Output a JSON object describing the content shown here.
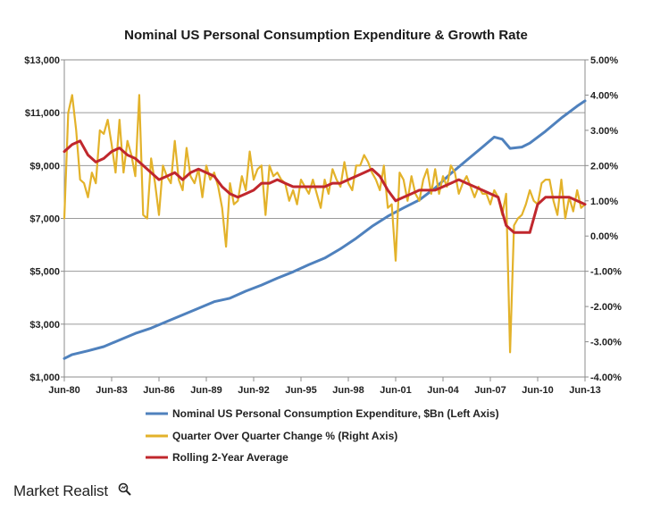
{
  "chart_data": {
    "type": "line",
    "title": "Nominal US Personal Consumption Expenditure & Growth Rate",
    "y_left": {
      "ylim": [
        1000,
        13000
      ],
      "ticks": [
        "$1,000",
        "$3,000",
        "$5,000",
        "$7,000",
        "$9,000",
        "$11,000",
        "$13,000"
      ],
      "tick_values": [
        1000,
        3000,
        5000,
        7000,
        9000,
        11000,
        13000
      ]
    },
    "y_right": {
      "ylim": [
        -4.0,
        5.0
      ],
      "ticks": [
        "-4.00%",
        "-3.00%",
        "-2.00%",
        "-1.00%",
        "0.00%",
        "1.00%",
        "2.00%",
        "3.00%",
        "4.00%",
        "5.00%"
      ],
      "tick_values": [
        -4,
        -3,
        -2,
        -1,
        0,
        1,
        2,
        3,
        4,
        5
      ]
    },
    "x_ticks": [
      "Jun-80",
      "Jun-83",
      "Jun-86",
      "Jun-89",
      "Jun-92",
      "Jun-95",
      "Jun-98",
      "Jun-01",
      "Jun-04",
      "Jun-07",
      "Jun-10",
      "Jun-13"
    ],
    "xlim": [
      1980.5,
      2013.5
    ],
    "grid": true,
    "legend_placement": "bottom",
    "series": [
      {
        "name": "Nominal US Personal Consumption Expenditure, $Bn (Left Axis)",
        "axis": "left",
        "color": "#4f81bd",
        "x": [
          1980.5,
          1981.0,
          1982.0,
          1983.0,
          1984.0,
          1985.0,
          1986.0,
          1987.0,
          1988.0,
          1989.0,
          1990.0,
          1991.0,
          1992.0,
          1993.0,
          1994.0,
          1995.0,
          1996.0,
          1997.0,
          1998.0,
          1999.0,
          2000.0,
          2001.0,
          2002.0,
          2003.0,
          2004.0,
          2005.0,
          2006.0,
          2007.0,
          2007.75,
          2008.25,
          2008.75,
          2009.5,
          2010.0,
          2011.0,
          2012.0,
          2013.0,
          2013.5
        ],
        "values": [
          1700,
          1850,
          1990,
          2150,
          2400,
          2650,
          2850,
          3100,
          3350,
          3600,
          3850,
          3980,
          4250,
          4480,
          4740,
          4980,
          5250,
          5500,
          5850,
          6250,
          6700,
          7080,
          7400,
          7700,
          8150,
          8700,
          9200,
          9700,
          10080,
          10000,
          9650,
          9700,
          9850,
          10300,
          10800,
          11250,
          11450
        ]
      },
      {
        "name": "Quarter Over Quarter Change % (Right Axis)",
        "axis": "right",
        "color": "#e3b22a",
        "x": [
          1980.5,
          1980.75,
          1981.0,
          1981.25,
          1981.5,
          1981.75,
          1982.0,
          1982.25,
          1982.5,
          1982.75,
          1983.0,
          1983.25,
          1983.5,
          1983.75,
          1984.0,
          1984.25,
          1984.5,
          1984.75,
          1985.0,
          1985.25,
          1985.5,
          1985.75,
          1986.0,
          1986.25,
          1986.5,
          1986.75,
          1987.0,
          1987.25,
          1987.5,
          1987.75,
          1988.0,
          1988.25,
          1988.5,
          1988.75,
          1989.0,
          1989.25,
          1989.5,
          1989.75,
          1990.0,
          1990.25,
          1990.5,
          1990.75,
          1991.0,
          1991.25,
          1991.5,
          1991.75,
          1992.0,
          1992.25,
          1992.5,
          1992.75,
          1993.0,
          1993.25,
          1993.5,
          1993.75,
          1994.0,
          1994.25,
          1994.5,
          1994.75,
          1995.0,
          1995.25,
          1995.5,
          1995.75,
          1996.0,
          1996.25,
          1996.5,
          1996.75,
          1997.0,
          1997.25,
          1997.5,
          1997.75,
          1998.0,
          1998.25,
          1998.5,
          1998.75,
          1999.0,
          1999.25,
          1999.5,
          1999.75,
          2000.0,
          2000.25,
          2000.5,
          2000.75,
          2001.0,
          2001.25,
          2001.5,
          2001.75,
          2002.0,
          2002.25,
          2002.5,
          2002.75,
          2003.0,
          2003.25,
          2003.5,
          2003.75,
          2004.0,
          2004.25,
          2004.5,
          2004.75,
          2005.0,
          2005.25,
          2005.5,
          2005.75,
          2006.0,
          2006.25,
          2006.5,
          2006.75,
          2007.0,
          2007.25,
          2007.5,
          2007.75,
          2008.0,
          2008.25,
          2008.5,
          2008.75,
          2009.0,
          2009.25,
          2009.5,
          2009.75,
          2010.0,
          2010.25,
          2010.5,
          2010.75,
          2011.0,
          2011.25,
          2011.5,
          2011.75,
          2012.0,
          2012.25,
          2012.5,
          2012.75,
          2013.0,
          2013.25,
          2013.5
        ],
        "values": [
          0.5,
          3.5,
          4.0,
          3.0,
          1.6,
          1.5,
          1.1,
          1.8,
          1.5,
          3.0,
          2.9,
          3.3,
          2.6,
          1.8,
          3.3,
          1.8,
          2.7,
          2.3,
          1.7,
          4.0,
          0.6,
          0.5,
          2.2,
          1.5,
          0.6,
          2.0,
          1.7,
          1.5,
          2.7,
          1.6,
          1.3,
          2.5,
          1.7,
          1.5,
          1.9,
          1.1,
          2.0,
          1.6,
          1.8,
          1.4,
          0.8,
          -0.3,
          1.5,
          0.9,
          1.0,
          1.7,
          1.3,
          2.4,
          1.6,
          1.9,
          2.0,
          0.6,
          2.0,
          1.7,
          1.8,
          1.6,
          1.5,
          1.0,
          1.3,
          0.9,
          1.6,
          1.4,
          1.2,
          1.6,
          1.2,
          0.8,
          1.6,
          1.2,
          1.9,
          1.6,
          1.4,
          2.1,
          1.5,
          1.3,
          2.0,
          2.0,
          2.3,
          2.1,
          1.8,
          1.6,
          1.3,
          2.0,
          0.8,
          0.9,
          -0.7,
          1.8,
          1.6,
          1.0,
          1.7,
          1.2,
          1.0,
          1.6,
          1.9,
          1.2,
          1.9,
          1.2,
          1.7,
          1.4,
          2.0,
          1.8,
          1.2,
          1.5,
          1.7,
          1.4,
          1.1,
          1.4,
          1.2,
          1.2,
          0.9,
          1.3,
          1.1,
          0.6,
          1.2,
          -3.3,
          0.3,
          0.5,
          0.6,
          0.9,
          1.3,
          1.0,
          0.9,
          1.5,
          1.6,
          1.6,
          1.0,
          0.6,
          1.6,
          0.5,
          1.1,
          0.7,
          1.3,
          0.8,
          0.9
        ]
      },
      {
        "name": "Rolling 2-Year Average",
        "axis": "right",
        "color": "#c0272d",
        "x": [
          1980.5,
          1981.0,
          1981.5,
          1982.0,
          1982.5,
          1983.0,
          1983.5,
          1984.0,
          1984.5,
          1985.0,
          1985.5,
          1986.0,
          1986.5,
          1987.0,
          1987.5,
          1988.0,
          1988.5,
          1989.0,
          1989.5,
          1990.0,
          1990.5,
          1991.0,
          1991.5,
          1992.0,
          1992.5,
          1993.0,
          1993.5,
          1994.0,
          1994.5,
          1995.0,
          1995.5,
          1996.0,
          1996.5,
          1997.0,
          1997.5,
          1998.0,
          1998.5,
          1999.0,
          1999.5,
          2000.0,
          2000.5,
          2001.0,
          2001.5,
          2002.0,
          2002.5,
          2003.0,
          2003.5,
          2004.0,
          2004.5,
          2005.0,
          2005.5,
          2006.0,
          2006.5,
          2007.0,
          2007.5,
          2008.0,
          2008.5,
          2009.0,
          2009.5,
          2010.0,
          2010.5,
          2011.0,
          2011.5,
          2012.0,
          2012.5,
          2013.0,
          2013.5
        ],
        "values": [
          2.4,
          2.6,
          2.7,
          2.3,
          2.1,
          2.2,
          2.4,
          2.5,
          2.3,
          2.2,
          2.0,
          1.8,
          1.6,
          1.7,
          1.8,
          1.6,
          1.8,
          1.9,
          1.8,
          1.7,
          1.4,
          1.2,
          1.1,
          1.2,
          1.3,
          1.5,
          1.5,
          1.6,
          1.5,
          1.4,
          1.4,
          1.4,
          1.4,
          1.4,
          1.5,
          1.5,
          1.6,
          1.7,
          1.8,
          1.9,
          1.7,
          1.3,
          1.0,
          1.1,
          1.2,
          1.3,
          1.3,
          1.3,
          1.4,
          1.5,
          1.6,
          1.5,
          1.4,
          1.3,
          1.2,
          1.1,
          0.3,
          0.1,
          0.1,
          0.1,
          0.9,
          1.1,
          1.1,
          1.1,
          1.1,
          1.0,
          0.9
        ]
      }
    ]
  },
  "brand": {
    "name": "Market Realist"
  }
}
